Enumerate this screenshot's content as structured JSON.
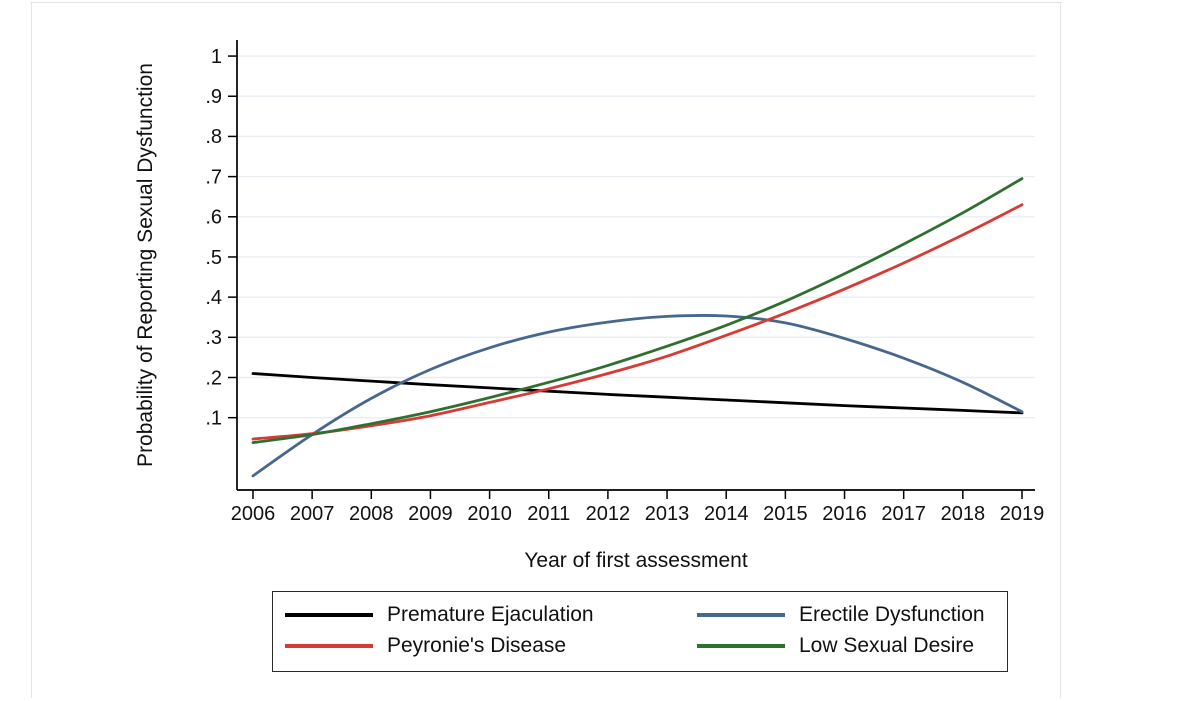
{
  "page": {
    "background": "#ffffff"
  },
  "chart_data": {
    "type": "line",
    "title": "",
    "xlabel": "Year of first assessment",
    "ylabel": "Probability of Reporting Sexual Dysfunction",
    "x": [
      2006,
      2007,
      2008,
      2009,
      2010,
      2011,
      2012,
      2013,
      2014,
      2015,
      2016,
      2017,
      2018,
      2019
    ],
    "xtick_labels": [
      "2006",
      "2007",
      "2008",
      "2009",
      "2010",
      "2011",
      "2012",
      "2013",
      "2014",
      "2015",
      "2016",
      "2017",
      "2018",
      "2019"
    ],
    "yticks": [
      {
        "value": 0.1,
        "label": ".1"
      },
      {
        "value": 0.2,
        "label": ".2"
      },
      {
        "value": 0.3,
        "label": ".3"
      },
      {
        "value": 0.4,
        "label": ".4"
      },
      {
        "value": 0.5,
        "label": ".5"
      },
      {
        "value": 0.6,
        "label": ".6"
      },
      {
        "value": 0.7,
        "label": ".7"
      },
      {
        "value": 0.8,
        "label": ".8"
      },
      {
        "value": 0.9,
        "label": ".9"
      },
      {
        "value": 1.0,
        "label": "1"
      }
    ],
    "xlim": [
      2005.73,
      2019.22
    ],
    "ylim": [
      -0.08,
      1.04
    ],
    "grid": "horizontal-only",
    "grid_color": "#e9eef4",
    "axis_color": "#000000",
    "legend_position": "bottom-center",
    "series": [
      {
        "name": "Premature Ejaculation",
        "color": "#000000",
        "values": [
          0.21,
          0.2,
          0.191,
          0.182,
          0.174,
          0.166,
          0.158,
          0.151,
          0.144,
          0.137,
          0.13,
          0.124,
          0.118,
          0.112
        ]
      },
      {
        "name": "Erectile Dysfunction",
        "color": "#46688f",
        "values": [
          -0.045,
          0.058,
          0.148,
          0.22,
          0.274,
          0.313,
          0.338,
          0.352,
          0.353,
          0.336,
          0.297,
          0.248,
          0.188,
          0.115
        ]
      },
      {
        "name": "Peyronie's Disease",
        "color": "#d63b35",
        "values": [
          0.047,
          0.06,
          0.08,
          0.105,
          0.138,
          0.172,
          0.21,
          0.253,
          0.305,
          0.36,
          0.42,
          0.485,
          0.555,
          0.63
        ]
      },
      {
        "name": "Low Sexual Desire",
        "color": "#2f7030",
        "values": [
          0.038,
          0.058,
          0.085,
          0.115,
          0.15,
          0.188,
          0.23,
          0.278,
          0.33,
          0.39,
          0.458,
          0.532,
          0.61,
          0.695
        ]
      }
    ]
  }
}
